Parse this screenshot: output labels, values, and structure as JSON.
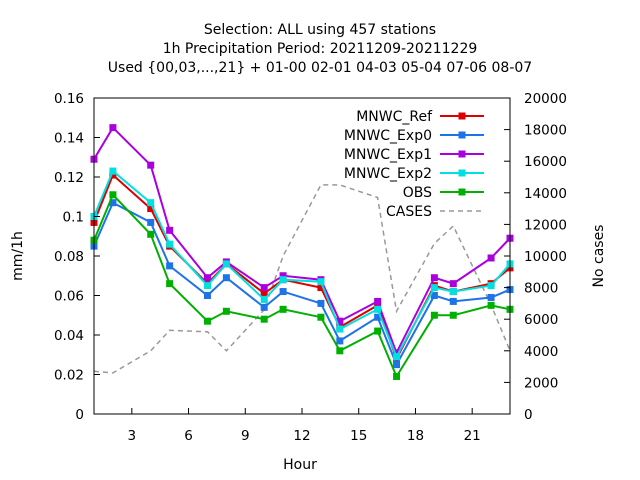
{
  "chart_data": {
    "type": "line",
    "title_lines": [
      "Selection: ALL using   457 stations",
      "1h Precipitation    Period: 20211209-20211229",
      "Used {00,03,...,21} + 01-00 02-01 04-03 05-04 07-06 08-07"
    ],
    "xlabel": "Hour",
    "ylabel": "mm/1h",
    "y2label": "No cases",
    "xlim": [
      1,
      23
    ],
    "ylim": [
      0,
      0.16
    ],
    "y2lim": [
      0,
      20000
    ],
    "xticks": [
      3,
      6,
      9,
      12,
      15,
      18,
      21
    ],
    "xtick_labels": [
      "3",
      "6",
      "9",
      "12",
      "15",
      "18",
      "21"
    ],
    "yticks": [
      0,
      0.02,
      0.04,
      0.06,
      0.08,
      0.1,
      0.12,
      0.14,
      0.16
    ],
    "ytick_labels": [
      "0",
      "0.02",
      "0.04",
      "0.06",
      "0.08",
      "0.1",
      "0.12",
      "0.14",
      "0.16"
    ],
    "y2ticks": [
      0,
      2000,
      4000,
      6000,
      8000,
      10000,
      12000,
      14000,
      16000,
      18000,
      20000
    ],
    "y2tick_labels": [
      "0",
      "2000",
      "4000",
      "6000",
      "8000",
      "10000",
      "12000",
      "14000",
      "16000",
      "18000",
      "20000"
    ],
    "legend_position": "top-right",
    "x": [
      1,
      2,
      4,
      5,
      7,
      8,
      10,
      11,
      13,
      14,
      16,
      17,
      19,
      20,
      22,
      23
    ],
    "series": [
      {
        "name": "MNWC_Ref",
        "color": "#dd0000",
        "marker": "square",
        "values": [
          0.097,
          0.121,
          0.104,
          0.085,
          0.066,
          0.076,
          0.061,
          0.068,
          0.064,
          0.044,
          0.055,
          0.028,
          0.065,
          0.062,
          0.066,
          0.074
        ]
      },
      {
        "name": "MNWC_Exp0",
        "color": "#1e73e6",
        "marker": "square",
        "values": [
          0.085,
          0.107,
          0.097,
          0.075,
          0.06,
          0.069,
          0.054,
          0.062,
          0.056,
          0.037,
          0.049,
          0.025,
          0.06,
          0.057,
          0.059,
          0.063
        ]
      },
      {
        "name": "MNWC_Exp1",
        "color": "#aa00dd",
        "marker": "square",
        "values": [
          0.129,
          0.145,
          0.126,
          0.093,
          0.069,
          0.077,
          0.064,
          0.07,
          0.068,
          0.047,
          0.057,
          0.031,
          0.069,
          0.066,
          0.079,
          0.089
        ]
      },
      {
        "name": "MNWC_Exp2",
        "color": "#00e0e0",
        "marker": "square",
        "values": [
          0.1,
          0.123,
          0.107,
          0.086,
          0.065,
          0.076,
          0.058,
          0.068,
          0.067,
          0.043,
          0.053,
          0.029,
          0.064,
          0.062,
          0.065,
          0.076
        ]
      },
      {
        "name": "OBS",
        "color": "#00b000",
        "marker": "square",
        "values": [
          0.088,
          0.111,
          0.091,
          0.066,
          0.047,
          0.052,
          0.048,
          0.053,
          0.049,
          0.032,
          0.042,
          0.019,
          0.05,
          0.05,
          0.055,
          0.053
        ]
      },
      {
        "name": "CASES",
        "color": "#999999",
        "dash": true,
        "axis": "y2",
        "x": [
          1,
          2,
          4,
          5,
          7,
          8,
          10,
          11,
          13,
          14,
          16,
          17,
          19,
          20,
          22,
          23
        ],
        "values": [
          2700,
          2600,
          4000,
          5300,
          5200,
          4000,
          6600,
          10000,
          14500,
          14500,
          13700,
          6500,
          10800,
          11900,
          6900,
          4000
        ]
      }
    ]
  }
}
